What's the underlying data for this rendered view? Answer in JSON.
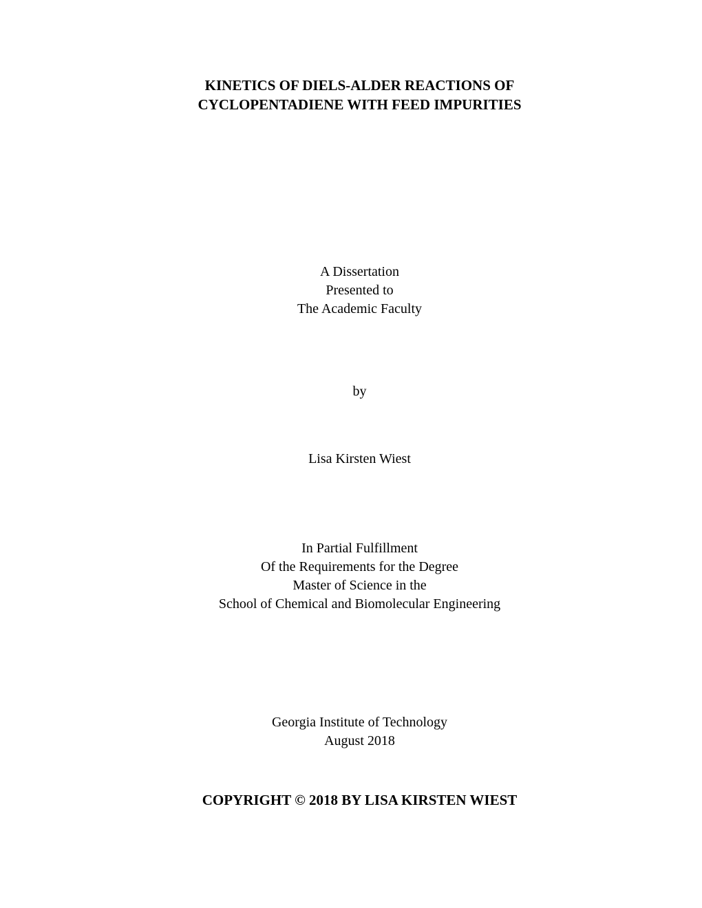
{
  "page": {
    "background_color": "#ffffff",
    "text_color": "#000000",
    "font_family": "Times New Roman"
  },
  "title": {
    "line1": "KINETICS OF DIELS-ALDER REACTIONS OF",
    "line2": "CYCLOPENTADIENE WITH FEED IMPURITIES",
    "fontsize": 21,
    "font_weight": "bold"
  },
  "presented": {
    "line1": "A Dissertation",
    "line2": "Presented to",
    "line3": "The Academic Faculty",
    "fontsize": 20
  },
  "by": {
    "text": "by",
    "fontsize": 20
  },
  "author": {
    "name": "Lisa Kirsten Wiest",
    "fontsize": 20
  },
  "fulfillment": {
    "line1": "In Partial Fulfillment",
    "line2": "Of the Requirements for the Degree",
    "line3": "Master of Science in the",
    "line4": "School of Chemical and Biomolecular Engineering",
    "fontsize": 20
  },
  "institution": {
    "name": "Georgia Institute of Technology",
    "date": "August 2018",
    "fontsize": 20
  },
  "copyright": {
    "text": "COPYRIGHT © 2018 BY LISA KIRSTEN WIEST",
    "fontsize": 21,
    "font_weight": "bold"
  }
}
